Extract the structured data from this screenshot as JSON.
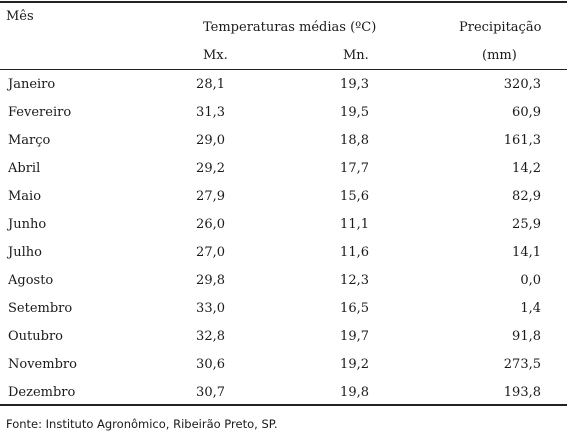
{
  "table": {
    "header": {
      "month": "Mês",
      "temperature": "Temperaturas médias (ºC)",
      "precipitation": "Precipitação",
      "max": "Mx.",
      "min": "Mn.",
      "unit": "(mm)"
    },
    "rows": [
      {
        "month": "Janeiro",
        "max": "28,1",
        "min": "19,3",
        "precip": "320,3"
      },
      {
        "month": "Fevereiro",
        "max": "31,3",
        "min": "19,5",
        "precip": "60,9"
      },
      {
        "month": "Março",
        "max": "29,0",
        "min": "18,8",
        "precip": "161,3"
      },
      {
        "month": "Abril",
        "max": "29,2",
        "min": "17,7",
        "precip": "14,2"
      },
      {
        "month": "Maio",
        "max": "27,9",
        "min": "15,6",
        "precip": "82,9"
      },
      {
        "month": "Junho",
        "max": "26,0",
        "min": "11,1",
        "precip": "25,9"
      },
      {
        "month": "Julho",
        "max": "27,0",
        "min": "11,6",
        "precip": "14,1"
      },
      {
        "month": "Agosto",
        "max": "29,8",
        "min": "12,3",
        "precip": "0,0"
      },
      {
        "month": "Setembro",
        "max": "33,0",
        "min": "16,5",
        "precip": "1,4"
      },
      {
        "month": "Outubro",
        "max": "32,8",
        "min": "19,7",
        "precip": "91,8"
      },
      {
        "month": "Novembro",
        "max": "30,6",
        "min": "19,2",
        "precip": "273,5"
      },
      {
        "month": "Dezembro",
        "max": "30,7",
        "min": "19,8",
        "precip": "193,8"
      }
    ]
  },
  "source": "Fonte: Instituto Agronômico, Ribeirão Preto, SP."
}
